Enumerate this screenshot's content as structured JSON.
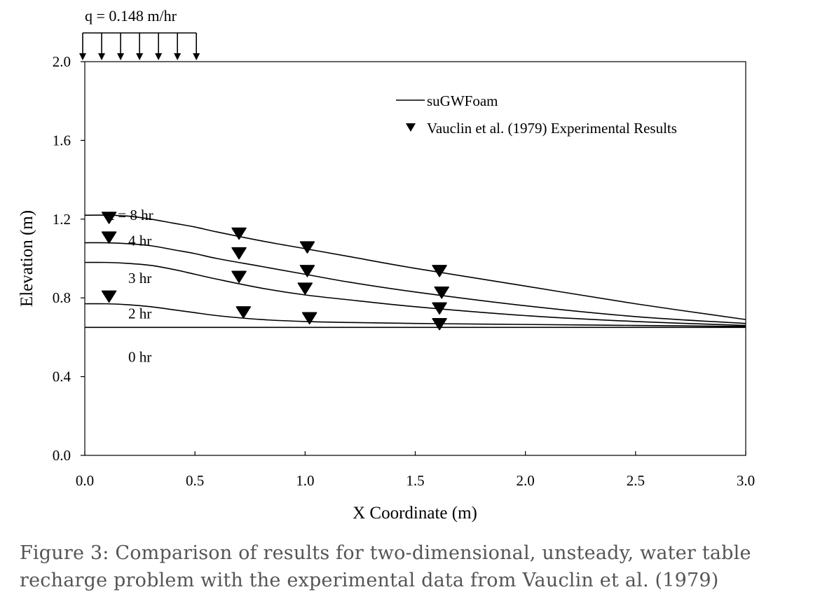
{
  "chart_data": {
    "type": "line",
    "xlabel": "X Coordinate (m)",
    "ylabel": "Elevation (m)",
    "xlim": [
      0,
      3
    ],
    "ylim": [
      0,
      2
    ],
    "xticks": [
      "0.0",
      "0.5",
      "1.0",
      "1.5",
      "2.0",
      "2.5",
      "3.0"
    ],
    "yticks": [
      "0.0",
      "0.4",
      "0.8",
      "1.2",
      "1.6",
      "2.0"
    ],
    "grid": false,
    "legend": {
      "placement": "top-right",
      "line_label": "suGWFoam",
      "marker_label": "Vauclin et al. (1979) Experimental Results"
    },
    "recharge": {
      "label": "q =  0.148 m/hr",
      "x_start": 0,
      "x_end": 0.5
    },
    "series": [
      {
        "name": "suGWFoam",
        "curves": [
          {
            "label": "0 hr",
            "x": [
              0,
              0.5,
              1.0,
              1.5,
              2.0,
              2.5,
              3.0
            ],
            "y": [
              0.65,
              0.65,
              0.65,
              0.65,
              0.65,
              0.65,
              0.65
            ]
          },
          {
            "label": "2 hr",
            "x": [
              0,
              0.1,
              0.2,
              0.3,
              0.4,
              0.5,
              0.6,
              0.8,
              1.0,
              1.2,
              1.5,
              2.0,
              2.5,
              3.0
            ],
            "y": [
              0.77,
              0.77,
              0.765,
              0.755,
              0.74,
              0.725,
              0.71,
              0.69,
              0.68,
              0.675,
              0.67,
              0.665,
              0.66,
              0.655
            ]
          },
          {
            "label": "3 hr",
            "x": [
              0,
              0.1,
              0.2,
              0.3,
              0.4,
              0.5,
              0.6,
              0.8,
              1.0,
              1.2,
              1.5,
              2.0,
              2.5,
              3.0
            ],
            "y": [
              0.98,
              0.98,
              0.975,
              0.965,
              0.945,
              0.92,
              0.895,
              0.85,
              0.815,
              0.79,
              0.755,
              0.71,
              0.68,
              0.66
            ]
          },
          {
            "label": "4 hr",
            "x": [
              0,
              0.1,
              0.2,
              0.3,
              0.4,
              0.5,
              0.6,
              0.8,
              1.0,
              1.2,
              1.5,
              2.0,
              2.5,
              3.0
            ],
            "y": [
              1.08,
              1.08,
              1.075,
              1.065,
              1.045,
              1.025,
              1.0,
              0.96,
              0.92,
              0.88,
              0.83,
              0.76,
              0.705,
              0.67
            ]
          },
          {
            "label": "t = 8 hr",
            "x": [
              0,
              0.1,
              0.2,
              0.3,
              0.4,
              0.5,
              0.6,
              0.8,
              1.0,
              1.2,
              1.5,
              2.0,
              2.5,
              3.0
            ],
            "y": [
              1.22,
              1.22,
              1.215,
              1.2,
              1.18,
              1.16,
              1.135,
              1.09,
              1.05,
              1.01,
              0.95,
              0.86,
              0.77,
              0.69
            ]
          }
        ]
      },
      {
        "name": "Vauclin et al. (1979) Experimental Results",
        "points": [
          {
            "x": 0.11,
            "y": 1.21
          },
          {
            "x": 0.7,
            "y": 1.13
          },
          {
            "x": 1.01,
            "y": 1.06
          },
          {
            "x": 1.61,
            "y": 0.94
          },
          {
            "x": 0.11,
            "y": 1.11
          },
          {
            "x": 0.7,
            "y": 1.03
          },
          {
            "x": 1.01,
            "y": 0.94
          },
          {
            "x": 1.62,
            "y": 0.83
          },
          {
            "x": 0.7,
            "y": 0.91
          },
          {
            "x": 1.0,
            "y": 0.85
          },
          {
            "x": 1.61,
            "y": 0.75
          },
          {
            "x": 0.11,
            "y": 0.81
          },
          {
            "x": 0.72,
            "y": 0.73
          },
          {
            "x": 1.02,
            "y": 0.7
          },
          {
            "x": 1.61,
            "y": 0.67
          }
        ]
      }
    ]
  },
  "caption": "Figure 3: Comparison of results for two-dimensional, unsteady, water table recharge problem with the experimental data from Vauclin et al. (1979)",
  "colors": {
    "line": "#000000",
    "marker": "#000000",
    "caption": "#555555"
  }
}
